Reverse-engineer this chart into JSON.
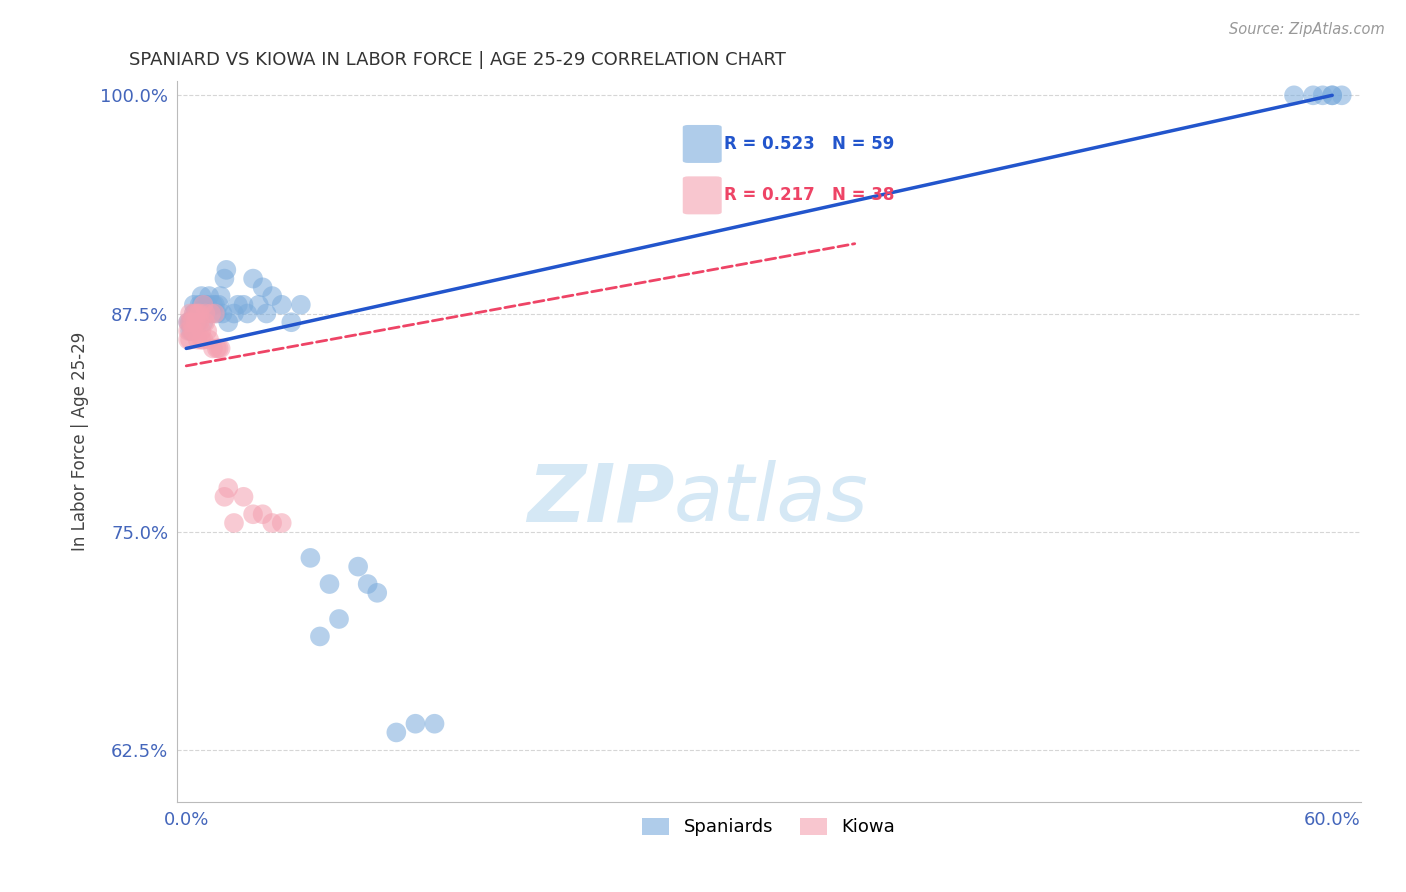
{
  "title": "SPANIARD VS KIOWA IN LABOR FORCE | AGE 25-29 CORRELATION CHART",
  "source": "Source: ZipAtlas.com",
  "ylabel": "In Labor Force | Age 25-29",
  "xlim": [
    -0.005,
    0.615
  ],
  "ylim": [
    0.595,
    1.008
  ],
  "yticks": [
    0.625,
    0.75,
    0.875,
    1.0
  ],
  "ytick_labels": [
    "62.5%",
    "75.0%",
    "87.5%",
    "100.0%"
  ],
  "xticks": [
    0.0,
    0.1,
    0.2,
    0.3,
    0.4,
    0.5,
    0.6
  ],
  "xtick_labels": [
    "0.0%",
    "",
    "",
    "",
    "",
    "",
    "60.0%"
  ],
  "spaniards_x": [
    0.001,
    0.002,
    0.002,
    0.003,
    0.003,
    0.004,
    0.004,
    0.005,
    0.005,
    0.006,
    0.006,
    0.007,
    0.007,
    0.008,
    0.008,
    0.009,
    0.009,
    0.01,
    0.01,
    0.011,
    0.012,
    0.013,
    0.014,
    0.015,
    0.016,
    0.017,
    0.018,
    0.019,
    0.02,
    0.021,
    0.022,
    0.025,
    0.027,
    0.03,
    0.032,
    0.035,
    0.038,
    0.04,
    0.042,
    0.045,
    0.05,
    0.055,
    0.06,
    0.065,
    0.07,
    0.075,
    0.08,
    0.09,
    0.095,
    0.1,
    0.11,
    0.12,
    0.13,
    0.58,
    0.59,
    0.595,
    0.6,
    0.6,
    0.605
  ],
  "spaniards_y": [
    0.87,
    0.87,
    0.865,
    0.87,
    0.865,
    0.875,
    0.88,
    0.875,
    0.87,
    0.875,
    0.87,
    0.88,
    0.875,
    0.885,
    0.88,
    0.875,
    0.87,
    0.88,
    0.875,
    0.88,
    0.885,
    0.875,
    0.88,
    0.88,
    0.875,
    0.88,
    0.885,
    0.875,
    0.895,
    0.9,
    0.87,
    0.875,
    0.88,
    0.88,
    0.875,
    0.895,
    0.88,
    0.89,
    0.875,
    0.885,
    0.88,
    0.87,
    0.88,
    0.735,
    0.69,
    0.72,
    0.7,
    0.73,
    0.72,
    0.715,
    0.635,
    0.64,
    0.64,
    1.0,
    1.0,
    1.0,
    1.0,
    1.0,
    1.0
  ],
  "kiowa_x": [
    0.001,
    0.001,
    0.001,
    0.002,
    0.002,
    0.002,
    0.003,
    0.003,
    0.004,
    0.004,
    0.005,
    0.005,
    0.006,
    0.006,
    0.007,
    0.007,
    0.008,
    0.008,
    0.009,
    0.009,
    0.01,
    0.01,
    0.011,
    0.012,
    0.013,
    0.014,
    0.015,
    0.016,
    0.017,
    0.018,
    0.02,
    0.022,
    0.025,
    0.03,
    0.035,
    0.04,
    0.045,
    0.05
  ],
  "kiowa_y": [
    0.87,
    0.865,
    0.86,
    0.875,
    0.87,
    0.86,
    0.87,
    0.865,
    0.875,
    0.865,
    0.875,
    0.87,
    0.875,
    0.86,
    0.875,
    0.87,
    0.865,
    0.86,
    0.88,
    0.86,
    0.875,
    0.87,
    0.865,
    0.86,
    0.875,
    0.855,
    0.875,
    0.855,
    0.855,
    0.855,
    0.77,
    0.775,
    0.755,
    0.77,
    0.76,
    0.76,
    0.755,
    0.755
  ],
  "spaniard_color": "#7AABDC",
  "kiowa_color": "#F4A0B0",
  "spaniard_line_color": "#2255CC",
  "kiowa_line_color": "#EE4466",
  "spaniard_R": 0.523,
  "spaniard_N": 59,
  "kiowa_R": 0.217,
  "kiowa_N": 38,
  "watermark_zip": "ZIP",
  "watermark_atlas": "atlas",
  "title_color": "#333333",
  "axis_label_color": "#444444",
  "tick_label_color": "#4466BB",
  "grid_color": "#CCCCCC",
  "background_color": "#FFFFFF"
}
